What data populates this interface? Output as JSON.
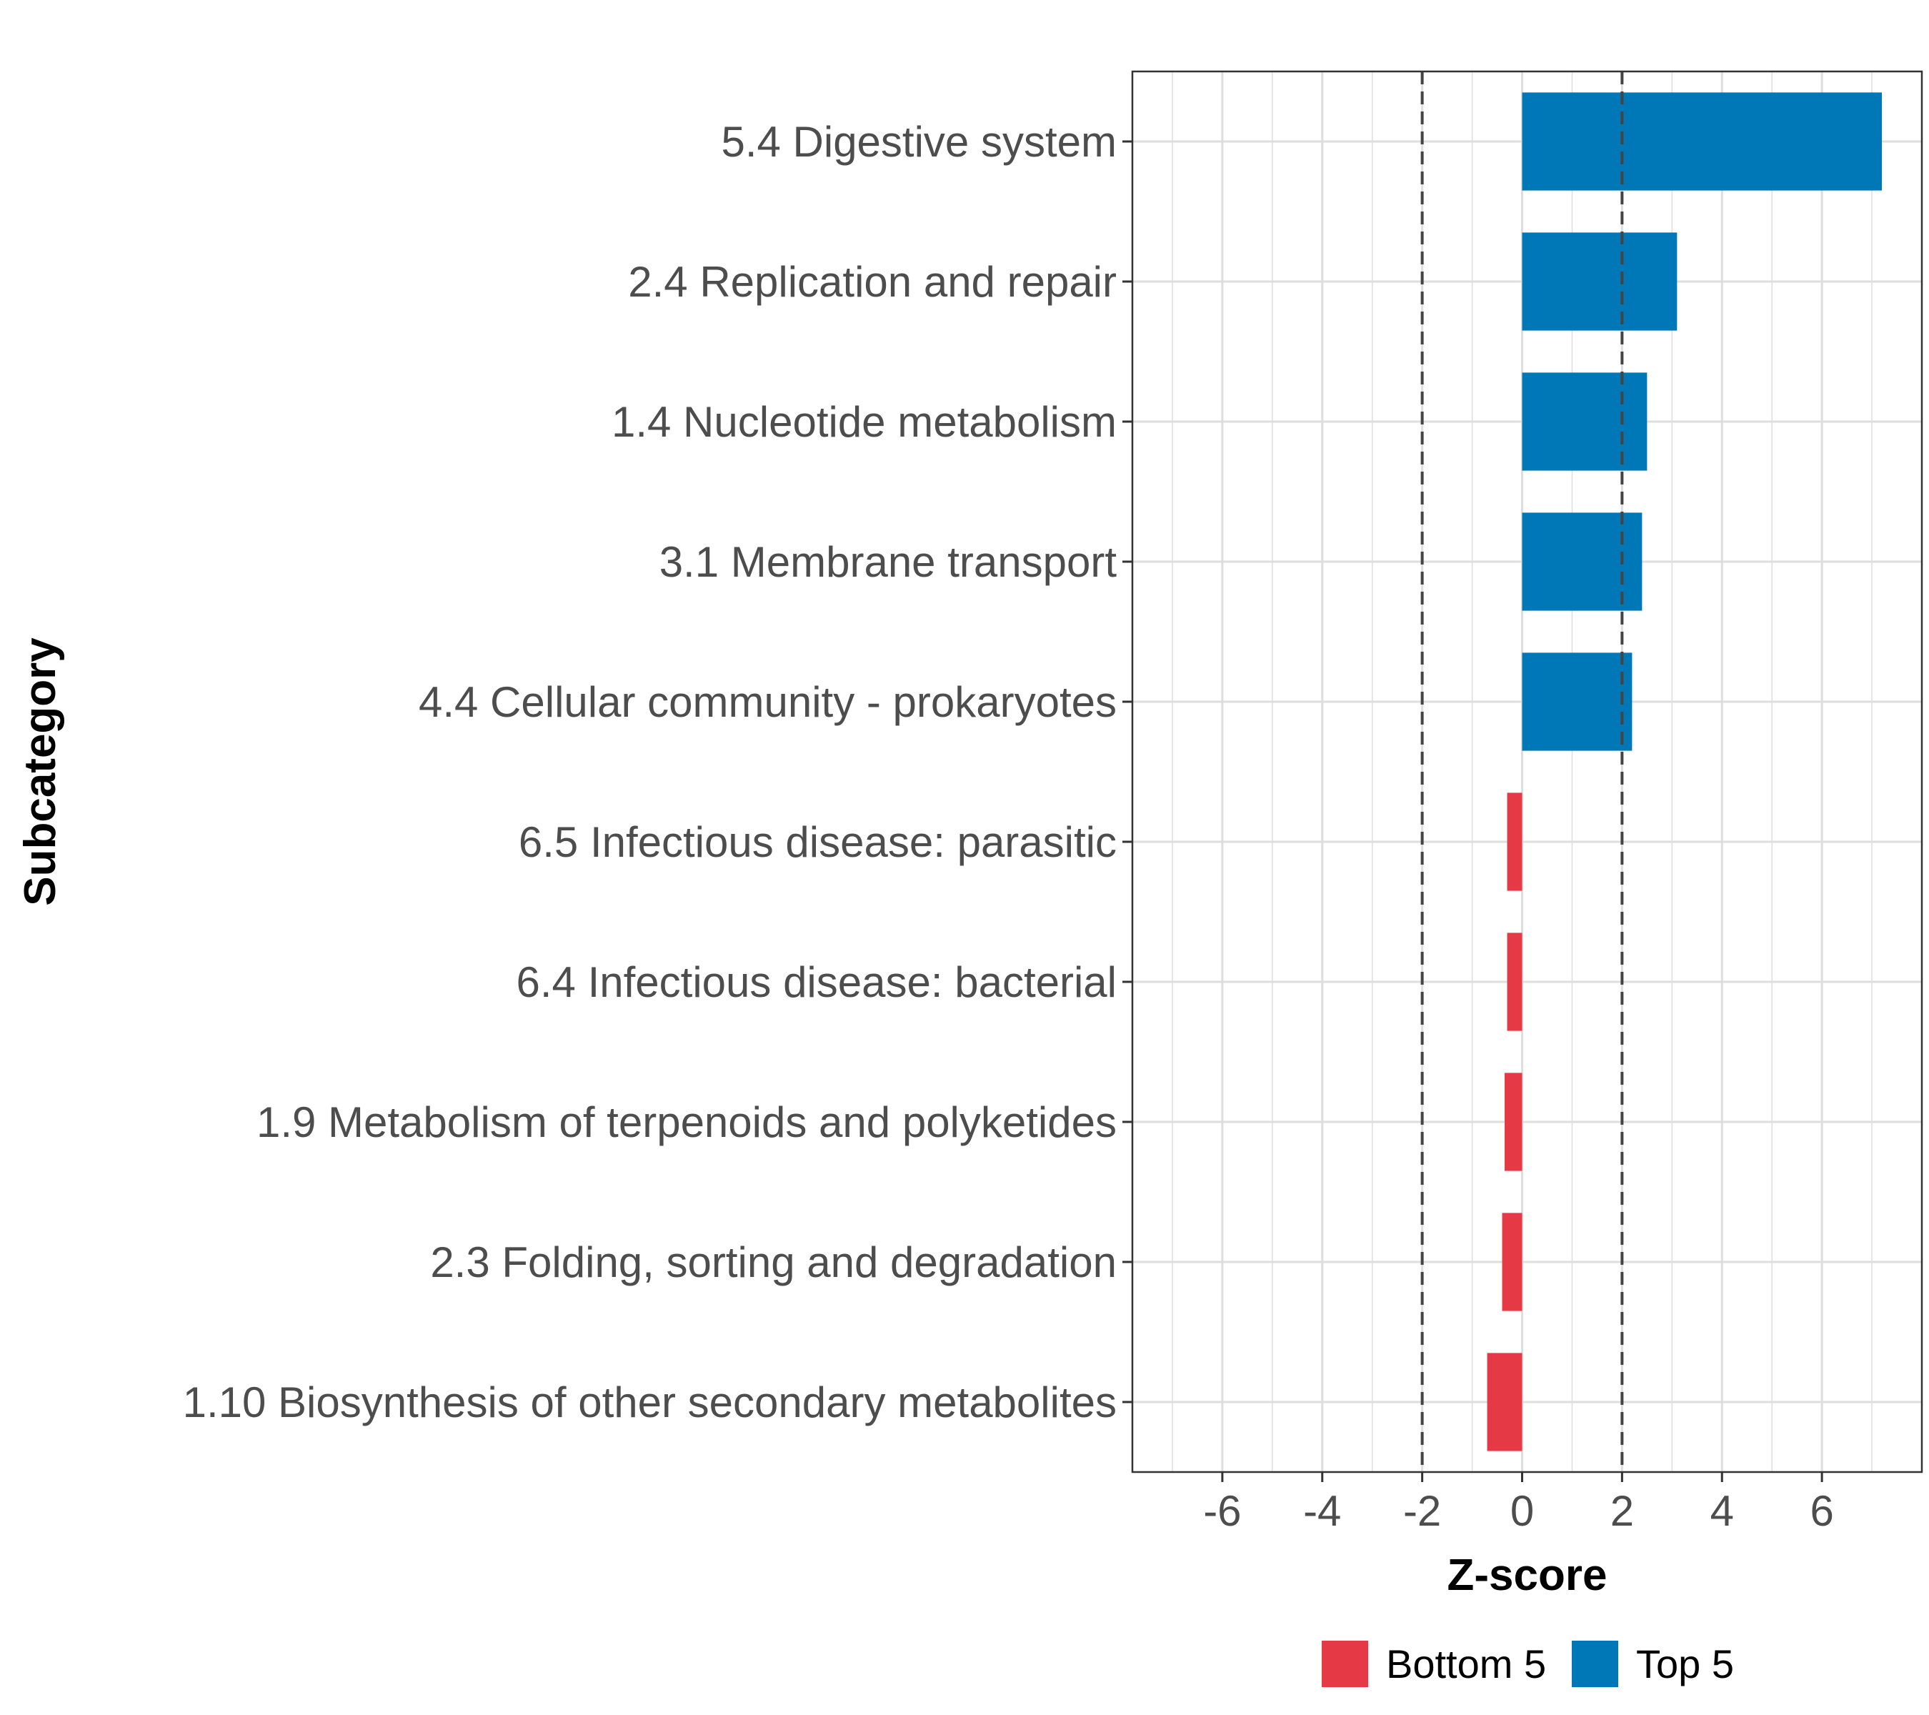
{
  "chart_data": {
    "type": "bar",
    "orientation": "horizontal",
    "title": "",
    "xlabel": "Z-score",
    "ylabel": "Subcategory",
    "xlim": [
      -7.8,
      8
    ],
    "xticks": [
      -6,
      -4,
      -2,
      0,
      2,
      4,
      6
    ],
    "xtick_labels": [
      "-6",
      "-4",
      "-2",
      "0",
      "2",
      "4",
      "6"
    ],
    "reference_lines": [
      -2,
      2
    ],
    "grid": true,
    "legend_position": "bottom",
    "categories": [
      "5.4 Digestive system",
      "2.4 Replication and repair",
      "1.4 Nucleotide metabolism",
      "3.1 Membrane transport",
      "4.4 Cellular community - prokaryotes",
      "6.5 Infectious disease: parasitic",
      "6.4 Infectious disease: bacterial",
      "1.9 Metabolism of terpenoids and polyketides",
      "2.3 Folding, sorting and degradation",
      "1.10 Biosynthesis of other secondary metabolites"
    ],
    "values": [
      7.2,
      3.1,
      2.5,
      2.4,
      2.2,
      -0.3,
      -0.3,
      -0.35,
      -0.4,
      -0.7
    ],
    "groups": [
      "Top 5",
      "Top 5",
      "Top 5",
      "Top 5",
      "Top 5",
      "Bottom 5",
      "Bottom 5",
      "Bottom 5",
      "Bottom 5",
      "Bottom 5"
    ],
    "legend": [
      {
        "name": "Bottom 5",
        "color": "#E63946"
      },
      {
        "name": "Top 5",
        "color": "#0077B6"
      }
    ]
  }
}
